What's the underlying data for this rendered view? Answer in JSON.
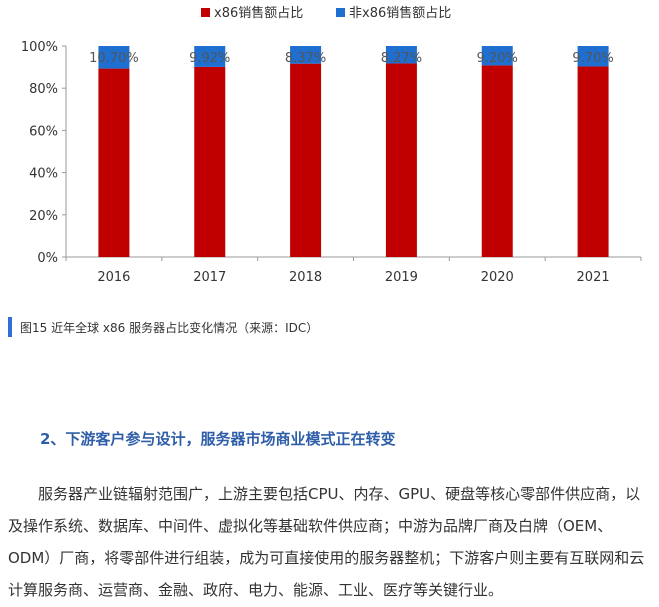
{
  "chart_data": {
    "type": "bar",
    "stacked": true,
    "categories": [
      "2016",
      "2017",
      "2018",
      "2019",
      "2020",
      "2021"
    ],
    "series": [
      {
        "name": "x86销售额占比",
        "color": "#c00000",
        "values": [
          89.3,
          90.08,
          91.63,
          91.73,
          90.8,
          90.3
        ]
      },
      {
        "name": "非x86销售额占比",
        "color": "#1f6fd1",
        "values": [
          10.7,
          9.92,
          8.37,
          8.27,
          9.2,
          9.7
        ],
        "labels": [
          "10.70%",
          "9.92%",
          "8.37%",
          "8.27%",
          "9.20%",
          "9.70%"
        ]
      }
    ],
    "y_ticks": [
      "0%",
      "20%",
      "40%",
      "60%",
      "80%",
      "100%"
    ],
    "ylim": [
      0,
      100
    ],
    "grid": false,
    "legend_position": "top-center"
  },
  "caption": "图15 近年全球 x86 服务器占比变化情况（来源：IDC）",
  "section_heading": "2、下游客户参与设计，服务器市场商业模式正在转变",
  "paragraph": "服务器产业链辐射范围广，上游主要包括CPU、内存、GPU、硬盘等核心零部件供应商，以及操作系统、数据库、中间件、虚拟化等基础软件供应商；中游为品牌厂商及白牌（OEM、ODM）厂商，将零部件进行组装，成为可直接使用的服务器整机；下游客户则主要有互联网和云计算服务商、运营商、金融、政府、电力、能源、工业、医疗等关键行业。",
  "colors": {
    "caption_accent": "#2f6fd6",
    "heading": "#2f5ea8"
  }
}
